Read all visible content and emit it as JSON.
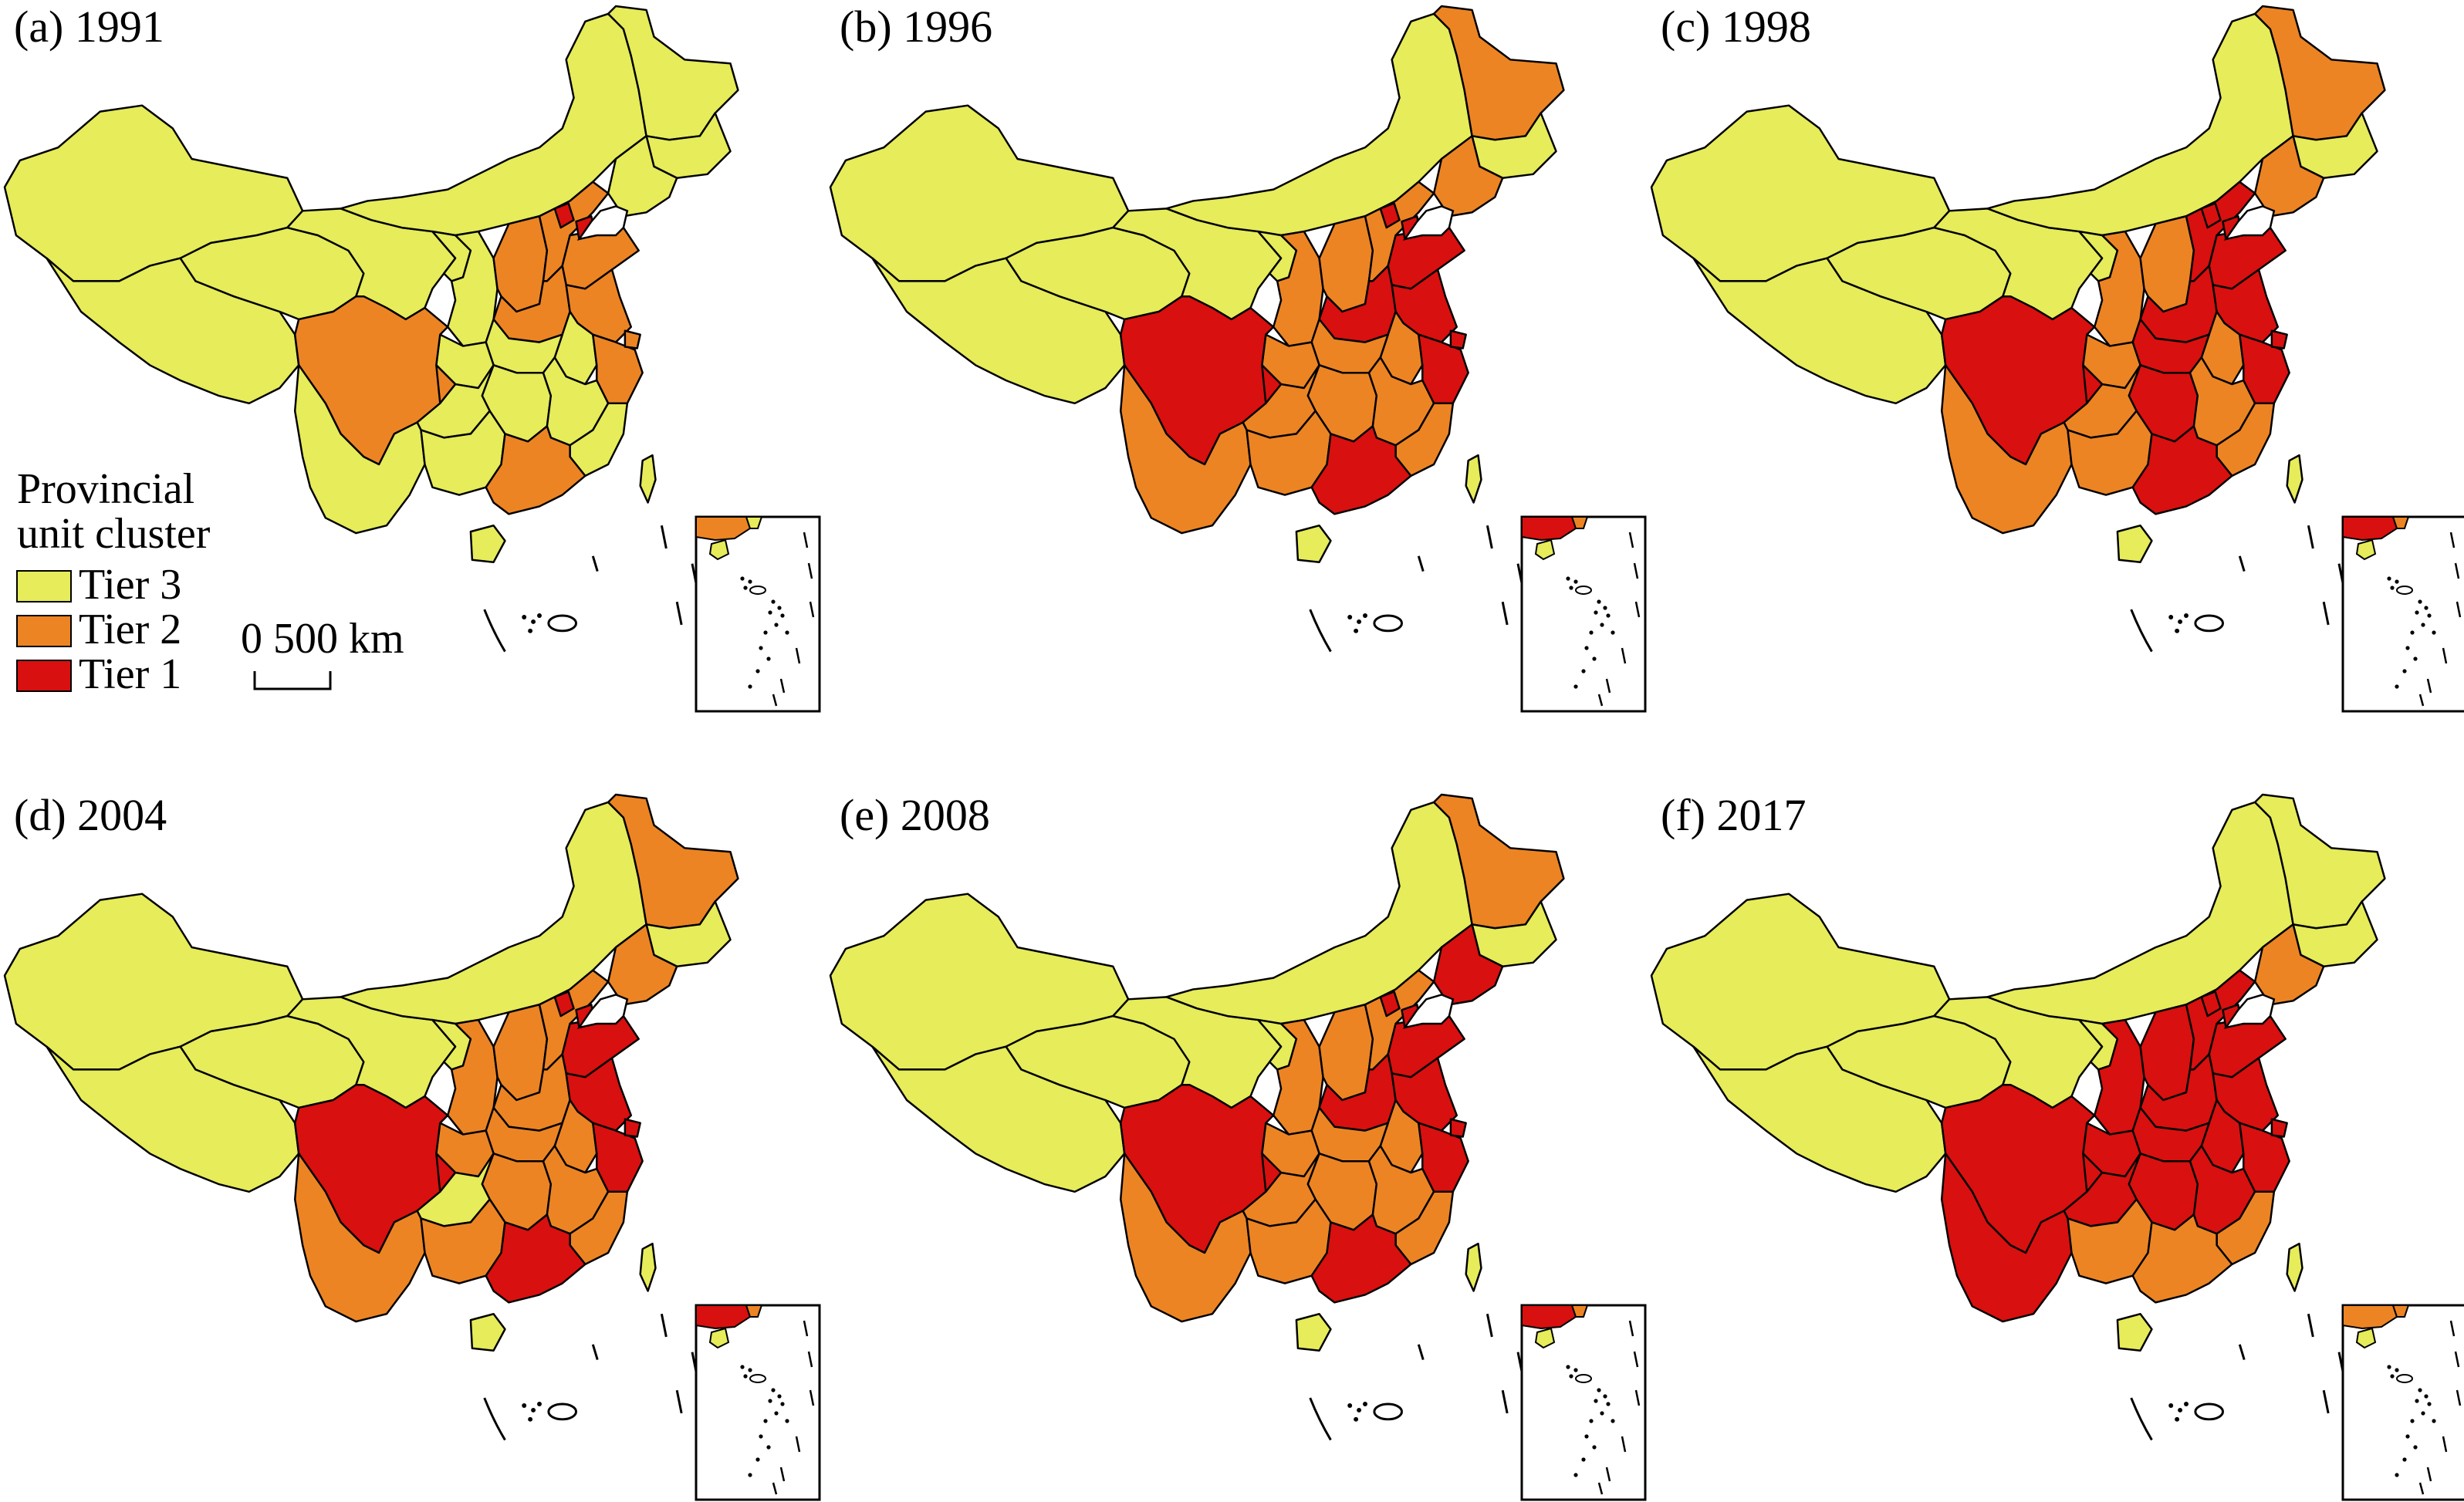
{
  "colors": {
    "tier3": "#e6ec5a",
    "tier2": "#ec8424",
    "tier1": "#d8100f",
    "border": "#000000"
  },
  "legend": {
    "title_line1": "Provincial",
    "title_line2": "unit cluster",
    "items": [
      {
        "tier": "tier3",
        "label": "Tier 3"
      },
      {
        "tier": "tier2",
        "label": "Tier 2"
      },
      {
        "tier": "tier1",
        "label": "Tier 1"
      }
    ]
  },
  "scale_bar": {
    "label": "0   500 km"
  },
  "panels": [
    {
      "label": "(a) 1991",
      "tiers": {
        "sichuan": 2,
        "shanxi": 2,
        "henan": 2,
        "hebei": 2,
        "shandong": 2,
        "jiangsu": 2,
        "shanghai": 2,
        "zhejiang": 2,
        "guangdong": 2,
        "beijing": 1,
        "tianjin": 1
      }
    },
    {
      "label": "(b) 1996",
      "tiers": {
        "heilongjiang": 2,
        "liaoning": 2,
        "sichuan": 1,
        "shandong": 1,
        "henan": 1,
        "jiangsu": 1,
        "shanghai": 1,
        "zhejiang": 1,
        "guangdong": 1,
        "beijing": 1,
        "tianjin": 1,
        "hebei": 2,
        "shanxi": 2,
        "shaanxi": 2,
        "hubei": 2,
        "hunan": 2,
        "anhui": 2,
        "jiangxi": 2,
        "fujian": 2,
        "guangxi": 2,
        "guizhou": 2,
        "chongqing": 2,
        "yunnan": 2
      }
    },
    {
      "label": "(c) 1998",
      "tiers": {
        "heilongjiang": 2,
        "liaoning": 2,
        "sichuan": 1,
        "hebei": 1,
        "shandong": 1,
        "jiangsu": 1,
        "shanghai": 1,
        "zhejiang": 1,
        "henan": 1,
        "hubei": 1,
        "hunan": 1,
        "guangdong": 1,
        "beijing": 1,
        "tianjin": 1,
        "shanxi": 2,
        "shaanxi": 2,
        "anhui": 2,
        "jiangxi": 2,
        "fujian": 2,
        "guangxi": 2,
        "guizhou": 2,
        "chongqing": 2,
        "yunnan": 2
      }
    },
    {
      "label": "(d) 2004",
      "tiers": {
        "heilongjiang": 2,
        "liaoning": 2,
        "sichuan": 1,
        "shandong": 1,
        "jiangsu": 1,
        "shanghai": 1,
        "zhejiang": 1,
        "guangdong": 1,
        "beijing": 1,
        "tianjin": 1,
        "hebei": 2,
        "shanxi": 2,
        "shaanxi": 2,
        "henan": 2,
        "hubei": 2,
        "hunan": 2,
        "anhui": 2,
        "jiangxi": 2,
        "fujian": 2,
        "guangxi": 2,
        "chongqing": 2,
        "yunnan": 2
      }
    },
    {
      "label": "(e) 2008",
      "tiers": {
        "heilongjiang": 2,
        "liaoning": 1,
        "sichuan": 1,
        "shandong": 1,
        "henan": 1,
        "jiangsu": 1,
        "shanghai": 1,
        "zhejiang": 1,
        "guangdong": 1,
        "beijing": 1,
        "tianjin": 1,
        "hebei": 2,
        "shanxi": 2,
        "shaanxi": 2,
        "hubei": 2,
        "hunan": 2,
        "anhui": 2,
        "jiangxi": 2,
        "fujian": 2,
        "guangxi": 2,
        "guizhou": 2,
        "chongqing": 2,
        "yunnan": 2
      }
    },
    {
      "label": "(f) 2017",
      "tiers": {
        "liaoning": 2,
        "sichuan": 1,
        "yunnan": 1,
        "guizhou": 1,
        "chongqing": 1,
        "shaanxi": 1,
        "shanxi": 1,
        "hebei": 1,
        "shandong": 1,
        "henan": 1,
        "hubei": 1,
        "hunan": 1,
        "anhui": 1,
        "jiangsu": 1,
        "shanghai": 1,
        "zhejiang": 1,
        "jiangxi": 1,
        "beijing": 1,
        "tianjin": 1,
        "guangdong": 2,
        "guangxi": 2,
        "fujian": 2
      }
    }
  ]
}
